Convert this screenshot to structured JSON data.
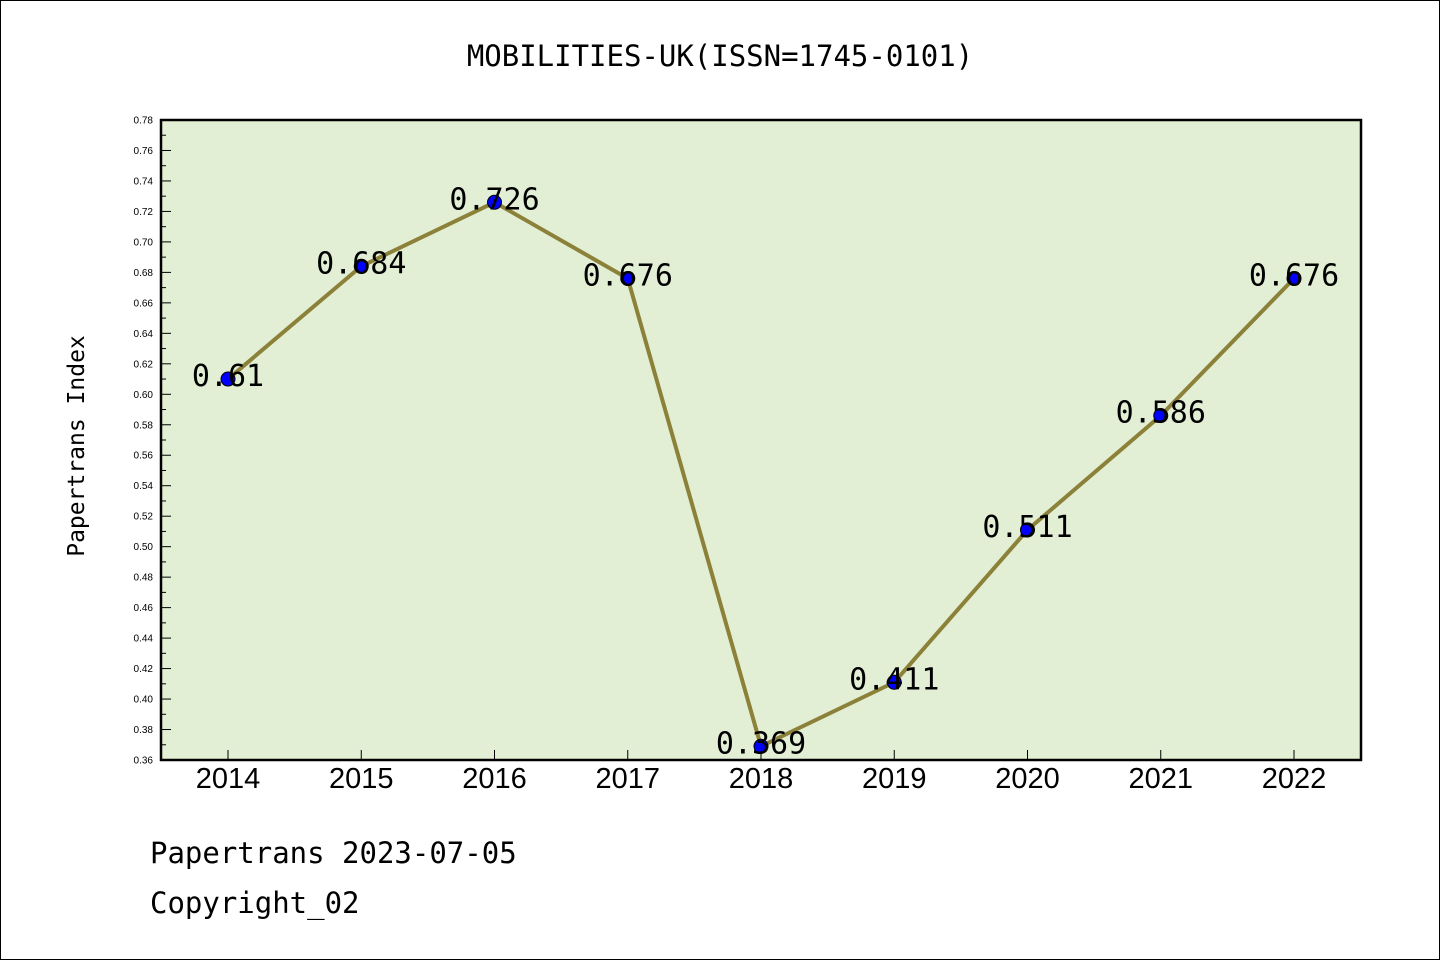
{
  "footer": {
    "source_line": "Papertrans 2023-07-05",
    "copyright_line": "Copyright_02"
  },
  "colors": {
    "plot_background": "#e2efd5",
    "line": "#8c8139",
    "marker": "#0000ff"
  },
  "chart_data": {
    "type": "line",
    "title": "MOBILITIES-UK(ISSN=1745-0101)",
    "ylabel": "Papertrans Index",
    "xlabel": "",
    "categories": [
      "2014",
      "2015",
      "2016",
      "2017",
      "2018",
      "2019",
      "2020",
      "2021",
      "2022"
    ],
    "series": [
      {
        "values": [
          0.61,
          0.684,
          0.726,
          0.676,
          0.369,
          0.411,
          0.511,
          0.586,
          0.676
        ],
        "labels": [
          "0.61",
          "0.684",
          "0.726",
          "0.676",
          "0.369",
          "0.411",
          "0.511",
          "0.586",
          "0.676"
        ]
      }
    ],
    "ylim": [
      0.36,
      0.78
    ],
    "yticks": [
      "0.36",
      "0.38",
      "0.40",
      "0.42",
      "0.44",
      "0.46",
      "0.48",
      "0.50",
      "0.52",
      "0.54",
      "0.56",
      "0.58",
      "0.60",
      "0.62",
      "0.64",
      "0.66",
      "0.68",
      "0.70",
      "0.72",
      "0.74",
      "0.76",
      "0.78"
    ],
    "grid": false,
    "legend": "none"
  }
}
